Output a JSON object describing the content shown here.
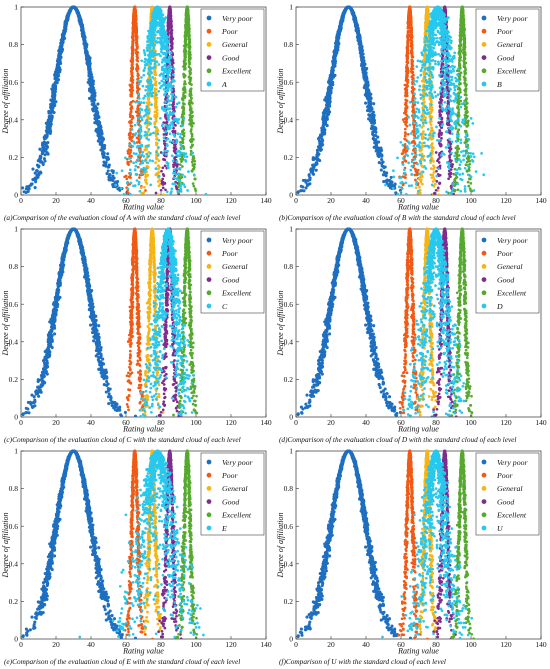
{
  "chart_data": [
    {
      "type": "scatter",
      "caption": "(a)Comparison of the evaluation cloud of A with the standard cloud of each level",
      "xlabel": "Rating value",
      "ylabel": "Degree of affiliation",
      "xlim": [
        0,
        140
      ],
      "ylim": [
        0,
        1
      ],
      "xticks": [
        0,
        20,
        40,
        60,
        80,
        100,
        120,
        140
      ],
      "yticks": [
        0,
        0.2,
        0.4,
        0.6,
        0.8,
        1
      ],
      "legend_position": "top-right",
      "series": [
        {
          "name": "Very poor",
          "color": "#1f6fc0",
          "Ex": 30,
          "En": 10,
          "He": 0.6
        },
        {
          "name": "Poor",
          "color": "#f05a14",
          "Ex": 65,
          "En": 1.7,
          "He": 0.35
        },
        {
          "name": "General",
          "color": "#f6b415",
          "Ex": 75,
          "En": 1.7,
          "He": 0.35
        },
        {
          "name": "Good",
          "color": "#7e2d8e",
          "Ex": 85,
          "En": 1.7,
          "He": 0.35
        },
        {
          "name": "Excellent",
          "color": "#56a92f",
          "Ex": 95,
          "En": 1.7,
          "He": 0.35
        },
        {
          "name": "A",
          "color": "#27c8ee",
          "Ex": 78,
          "En": 5.5,
          "He": 2.4
        }
      ]
    },
    {
      "type": "scatter",
      "caption": "(b)Comparison of the evaluation cloud of B with the standard cloud of each level",
      "xlabel": "Rating value",
      "ylabel": "Degree of affiliation",
      "xlim": [
        0,
        140
      ],
      "ylim": [
        0,
        1
      ],
      "xticks": [
        0,
        20,
        40,
        60,
        80,
        100,
        120,
        140
      ],
      "yticks": [
        0,
        0.2,
        0.4,
        0.6,
        0.8,
        1
      ],
      "legend_position": "top-right",
      "series": [
        {
          "name": "Very poor",
          "color": "#1f6fc0",
          "Ex": 30,
          "En": 10,
          "He": 0.6
        },
        {
          "name": "Poor",
          "color": "#f05a14",
          "Ex": 65,
          "En": 1.7,
          "He": 0.35
        },
        {
          "name": "General",
          "color": "#f6b415",
          "Ex": 75,
          "En": 1.7,
          "He": 0.35
        },
        {
          "name": "Good",
          "color": "#7e2d8e",
          "Ex": 85,
          "En": 1.7,
          "He": 0.35
        },
        {
          "name": "Excellent",
          "color": "#56a92f",
          "Ex": 95,
          "En": 1.7,
          "He": 0.35
        },
        {
          "name": "B",
          "color": "#27c8ee",
          "Ex": 81,
          "En": 6.5,
          "He": 3.2
        }
      ]
    },
    {
      "type": "scatter",
      "caption": "(c)Comparison of the evaluation cloud of C with the standard cloud of each level",
      "xlabel": "Rating value",
      "ylabel": "Degree of affiliation",
      "xlim": [
        0,
        140
      ],
      "ylim": [
        0,
        1
      ],
      "xticks": [
        0,
        20,
        40,
        60,
        80,
        100,
        120,
        140
      ],
      "yticks": [
        0,
        0.2,
        0.4,
        0.6,
        0.8,
        1
      ],
      "legend_position": "top-right",
      "series": [
        {
          "name": "Very poor",
          "color": "#1f6fc0",
          "Ex": 30,
          "En": 10,
          "He": 0.6
        },
        {
          "name": "Poor",
          "color": "#f05a14",
          "Ex": 65,
          "En": 1.7,
          "He": 0.35
        },
        {
          "name": "General",
          "color": "#f6b415",
          "Ex": 75,
          "En": 1.7,
          "He": 0.35
        },
        {
          "name": "Good",
          "color": "#7e2d8e",
          "Ex": 85,
          "En": 1.7,
          "He": 0.35
        },
        {
          "name": "Excellent",
          "color": "#56a92f",
          "Ex": 95,
          "En": 1.7,
          "He": 0.35
        },
        {
          "name": "C",
          "color": "#27c8ee",
          "Ex": 84,
          "En": 4.5,
          "He": 1.6
        }
      ]
    },
    {
      "type": "scatter",
      "caption": "(d)Comparison of the evaluation cloud of D with the standard cloud of each level",
      "xlabel": "Rating value",
      "ylabel": "Degree of affiliation",
      "xlim": [
        0,
        140
      ],
      "ylim": [
        0,
        1
      ],
      "xticks": [
        0,
        20,
        40,
        60,
        80,
        100,
        120,
        140
      ],
      "yticks": [
        0,
        0.2,
        0.4,
        0.6,
        0.8,
        1
      ],
      "legend_position": "top-right",
      "series": [
        {
          "name": "Very poor",
          "color": "#1f6fc0",
          "Ex": 30,
          "En": 10,
          "He": 0.6
        },
        {
          "name": "Poor",
          "color": "#f05a14",
          "Ex": 65,
          "En": 1.7,
          "He": 0.35
        },
        {
          "name": "General",
          "color": "#f6b415",
          "Ex": 75,
          "En": 1.7,
          "He": 0.35
        },
        {
          "name": "Good",
          "color": "#7e2d8e",
          "Ex": 85,
          "En": 1.7,
          "He": 0.35
        },
        {
          "name": "Excellent",
          "color": "#56a92f",
          "Ex": 95,
          "En": 1.7,
          "He": 0.35
        },
        {
          "name": "D",
          "color": "#27c8ee",
          "Ex": 80,
          "En": 5,
          "He": 2
        }
      ]
    },
    {
      "type": "scatter",
      "caption": "(e)Comparison of the evaluation cloud of E with the standard cloud of each level",
      "xlabel": "Rating value",
      "ylabel": "Degree of affiliation",
      "xlim": [
        0,
        140
      ],
      "ylim": [
        0,
        1
      ],
      "xticks": [
        0,
        20,
        40,
        60,
        80,
        100,
        120,
        140
      ],
      "yticks": [
        0,
        0.2,
        0.4,
        0.6,
        0.8,
        1
      ],
      "legend_position": "top-right",
      "series": [
        {
          "name": "Very poor",
          "color": "#1f6fc0",
          "Ex": 30,
          "En": 10,
          "He": 0.6
        },
        {
          "name": "Poor",
          "color": "#f05a14",
          "Ex": 65,
          "En": 1.7,
          "He": 0.35
        },
        {
          "name": "General",
          "color": "#f6b415",
          "Ex": 75,
          "En": 1.7,
          "He": 0.35
        },
        {
          "name": "Good",
          "color": "#7e2d8e",
          "Ex": 85,
          "En": 1.7,
          "He": 0.35
        },
        {
          "name": "Excellent",
          "color": "#56a92f",
          "Ex": 95,
          "En": 1.7,
          "He": 0.35
        },
        {
          "name": "E",
          "color": "#27c8ee",
          "Ex": 78,
          "En": 7,
          "He": 3
        }
      ]
    },
    {
      "type": "scatter",
      "caption": "(f)Comparison of U with the standard cloud of each level",
      "xlabel": "Rating value",
      "ylabel": "Degree of affiliation",
      "xlim": [
        0,
        140
      ],
      "ylim": [
        0,
        1
      ],
      "xticks": [
        0,
        20,
        40,
        60,
        80,
        100,
        120,
        140
      ],
      "yticks": [
        0,
        0.2,
        0.4,
        0.6,
        0.8,
        1
      ],
      "legend_position": "top-right",
      "series": [
        {
          "name": "Very poor",
          "color": "#1f6fc0",
          "Ex": 30,
          "En": 10,
          "He": 0.6
        },
        {
          "name": "Poor",
          "color": "#f05a14",
          "Ex": 65,
          "En": 1.7,
          "He": 0.35
        },
        {
          "name": "General",
          "color": "#f6b415",
          "Ex": 75,
          "En": 1.7,
          "He": 0.35
        },
        {
          "name": "Good",
          "color": "#7e2d8e",
          "Ex": 85,
          "En": 1.7,
          "He": 0.35
        },
        {
          "name": "Excellent",
          "color": "#56a92f",
          "Ex": 95,
          "En": 1.7,
          "He": 0.35
        },
        {
          "name": "U",
          "color": "#27c8ee",
          "Ex": 80,
          "En": 5,
          "He": 2
        }
      ]
    }
  ]
}
